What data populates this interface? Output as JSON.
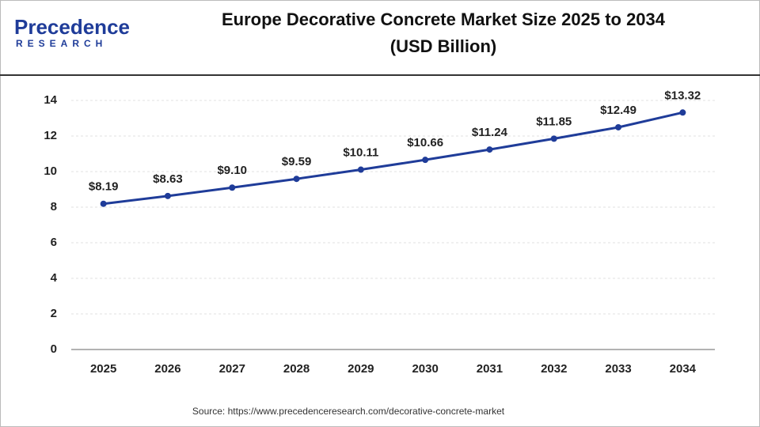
{
  "brand": {
    "name": "Precedence",
    "tagline": "RESEARCH"
  },
  "chart_data": {
    "type": "line",
    "title": "Europe Decorative Concrete Market Size 2025 to 2034",
    "subtitle": "(USD Billion)",
    "categories": [
      "2025",
      "2026",
      "2027",
      "2028",
      "2029",
      "2030",
      "2031",
      "2032",
      "2033",
      "2034"
    ],
    "values": [
      8.19,
      8.63,
      9.1,
      9.59,
      10.11,
      10.66,
      11.24,
      11.85,
      12.49,
      13.32
    ],
    "value_labels": [
      "$8.19",
      "$8.63",
      "$9.10",
      "$9.59",
      "$10.11",
      "$10.66",
      "$11.24",
      "$11.85",
      "$12.49",
      "$13.32"
    ],
    "color": "#1f3c99",
    "ylim": [
      0,
      14
    ],
    "yticks": [
      0,
      2,
      4,
      6,
      8,
      10,
      12,
      14
    ],
    "grid": true,
    "source": "Source: https://www.precedenceresearch.com/decorative-concrete-market"
  }
}
